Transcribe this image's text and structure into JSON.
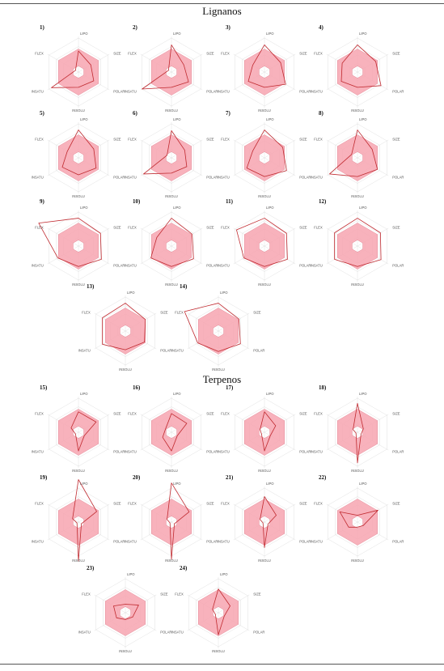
{
  "sections": [
    {
      "title": "Lignanos"
    },
    {
      "title": "Terpenos"
    }
  ],
  "axes": [
    "LIPO",
    "SIZE",
    "POLAR",
    "INSOLU",
    "INSATU",
    "FLEX"
  ],
  "colors": {
    "band": "#f7a4b0",
    "band_stroke": "#e07a8a",
    "molecule": "#c0292f",
    "grid": "#d9d9d9"
  },
  "chart_data": [
    {
      "type": "radar",
      "label": "1)",
      "axes": [
        "LIPO",
        "SIZE",
        "POLAR",
        "INSOLU",
        "INSATU",
        "FLEX"
      ],
      "values": [
        0.62,
        0.42,
        0.52,
        0.45,
        0.92,
        0.1
      ]
    },
    {
      "type": "radar",
      "label": "2)",
      "axes": [
        "LIPO",
        "SIZE",
        "POLAR",
        "INSOLU",
        "INSATU",
        "FLEX"
      ],
      "values": [
        0.8,
        0.42,
        0.58,
        0.45,
        1.0,
        0.1
      ]
    },
    {
      "type": "radar",
      "label": "3)",
      "axes": [
        "LIPO",
        "SIZE",
        "POLAR",
        "INSOLU",
        "INSATU",
        "FLEX"
      ],
      "values": [
        0.8,
        0.55,
        0.72,
        0.45,
        0.55,
        0.4
      ]
    },
    {
      "type": "radar",
      "label": "4)",
      "axes": [
        "LIPO",
        "SIZE",
        "POLAR",
        "INSOLU",
        "INSATU",
        "FLEX"
      ],
      "values": [
        0.8,
        0.62,
        0.8,
        0.45,
        0.55,
        0.52
      ]
    },
    {
      "type": "radar",
      "label": "5)",
      "axes": [
        "LIPO",
        "SIZE",
        "POLAR",
        "INSOLU",
        "INSATU",
        "FLEX"
      ],
      "values": [
        0.82,
        0.52,
        0.6,
        0.5,
        0.55,
        0.38
      ]
    },
    {
      "type": "radar",
      "label": "6)",
      "axes": [
        "LIPO",
        "SIZE",
        "POLAR",
        "INSOLU",
        "INSATU",
        "FLEX"
      ],
      "values": [
        0.8,
        0.45,
        0.52,
        0.45,
        0.95,
        0.15
      ]
    },
    {
      "type": "radar",
      "label": "7)",
      "axes": [
        "LIPO",
        "SIZE",
        "POLAR",
        "INSOLU",
        "INSATU",
        "FLEX"
      ],
      "values": [
        0.82,
        0.62,
        0.75,
        0.55,
        0.6,
        0.4
      ]
    },
    {
      "type": "radar",
      "label": "8)",
      "axes": [
        "LIPO",
        "SIZE",
        "POLAR",
        "INSOLU",
        "INSATU",
        "FLEX"
      ],
      "values": [
        0.82,
        0.5,
        0.68,
        0.55,
        0.95,
        0.2
      ]
    },
    {
      "type": "radar",
      "label": "9)",
      "axes": [
        "LIPO",
        "SIZE",
        "POLAR",
        "INSOLU",
        "INSATU",
        "FLEX"
      ],
      "values": [
        0.82,
        0.75,
        0.78,
        0.6,
        0.7,
        1.35
      ]
    },
    {
      "type": "radar",
      "label": "10)",
      "axes": [
        "LIPO",
        "SIZE",
        "POLAR",
        "INSOLU",
        "INSATU",
        "FLEX"
      ],
      "values": [
        0.82,
        0.7,
        0.75,
        0.6,
        0.7,
        0.5
      ]
    },
    {
      "type": "radar",
      "label": "11)",
      "axes": [
        "LIPO",
        "SIZE",
        "POLAR",
        "INSOLU",
        "INSATU",
        "FLEX"
      ],
      "values": [
        0.82,
        0.75,
        0.78,
        0.6,
        0.7,
        0.95
      ]
    },
    {
      "type": "radar",
      "label": "12)",
      "axes": [
        "LIPO",
        "SIZE",
        "POLAR",
        "INSOLU",
        "INSATU",
        "FLEX"
      ],
      "values": [
        0.82,
        0.78,
        0.8,
        0.6,
        0.78,
        0.78
      ]
    },
    {
      "type": "radar",
      "label": "13)",
      "axes": [
        "LIPO",
        "SIZE",
        "POLAR",
        "INSOLU",
        "INSATU",
        "FLEX"
      ],
      "values": [
        0.82,
        0.68,
        0.65,
        0.55,
        0.78,
        0.78
      ]
    },
    {
      "type": "radar",
      "label": "14)",
      "axes": [
        "LIPO",
        "SIZE",
        "POLAR",
        "INSOLU",
        "INSATU",
        "FLEX"
      ],
      "values": [
        0.82,
        0.7,
        0.75,
        0.6,
        0.7,
        1.15
      ]
    },
    {
      "type": "radar",
      "label": "15)",
      "axes": [
        "LIPO",
        "SIZE",
        "POLAR",
        "INSOLU",
        "INSATU",
        "FLEX"
      ],
      "values": [
        0.6,
        0.6,
        0.2,
        0.55,
        0.1,
        0.25
      ]
    },
    {
      "type": "radar",
      "label": "16)",
      "axes": [
        "LIPO",
        "SIZE",
        "POLAR",
        "INSOLU",
        "INSATU",
        "FLEX"
      ],
      "values": [
        0.55,
        0.52,
        0.2,
        0.55,
        0.3,
        0.2
      ]
    },
    {
      "type": "radar",
      "label": "17)",
      "axes": [
        "LIPO",
        "SIZE",
        "POLAR",
        "INSOLU",
        "INSATU",
        "FLEX"
      ],
      "values": [
        0.6,
        0.38,
        0.2,
        0.55,
        0.1,
        0.15
      ]
    },
    {
      "type": "radar",
      "label": "18)",
      "axes": [
        "LIPO",
        "SIZE",
        "POLAR",
        "INSOLU",
        "INSATU",
        "FLEX"
      ],
      "values": [
        0.85,
        0.2,
        0.12,
        0.9,
        0.05,
        0.15
      ]
    },
    {
      "type": "radar",
      "label": "19)",
      "axes": [
        "LIPO",
        "SIZE",
        "POLAR",
        "INSOLU",
        "INSATU",
        "FLEX"
      ],
      "values": [
        1.25,
        0.62,
        0.1,
        1.15,
        0.05,
        0.2
      ]
    },
    {
      "type": "radar",
      "label": "20)",
      "axes": [
        "LIPO",
        "SIZE",
        "POLAR",
        "INSOLU",
        "INSATU",
        "FLEX"
      ],
      "values": [
        1.15,
        0.6,
        0.1,
        1.1,
        0.05,
        0.15
      ]
    },
    {
      "type": "radar",
      "label": "21)",
      "axes": [
        "LIPO",
        "SIZE",
        "POLAR",
        "INSOLU",
        "INSATU",
        "FLEX"
      ],
      "values": [
        0.75,
        0.4,
        0.12,
        0.75,
        0.05,
        0.15
      ]
    },
    {
      "type": "radar",
      "label": "22)",
      "axes": [
        "LIPO",
        "SIZE",
        "POLAR",
        "INSOLU",
        "INSATU",
        "FLEX"
      ],
      "values": [
        0.2,
        0.7,
        0.2,
        0.15,
        0.3,
        0.6
      ]
    },
    {
      "type": "radar",
      "label": "23)",
      "axes": [
        "LIPO",
        "SIZE",
        "POLAR",
        "INSOLU",
        "INSATU",
        "FLEX"
      ],
      "values": [
        0.25,
        0.45,
        0.25,
        0.2,
        0.3,
        0.4
      ]
    },
    {
      "type": "radar",
      "label": "24)",
      "axes": [
        "LIPO",
        "SIZE",
        "POLAR",
        "INSOLU",
        "INSATU",
        "FLEX"
      ],
      "values": [
        0.7,
        0.4,
        0.2,
        0.65,
        0.1,
        0.2
      ]
    }
  ]
}
